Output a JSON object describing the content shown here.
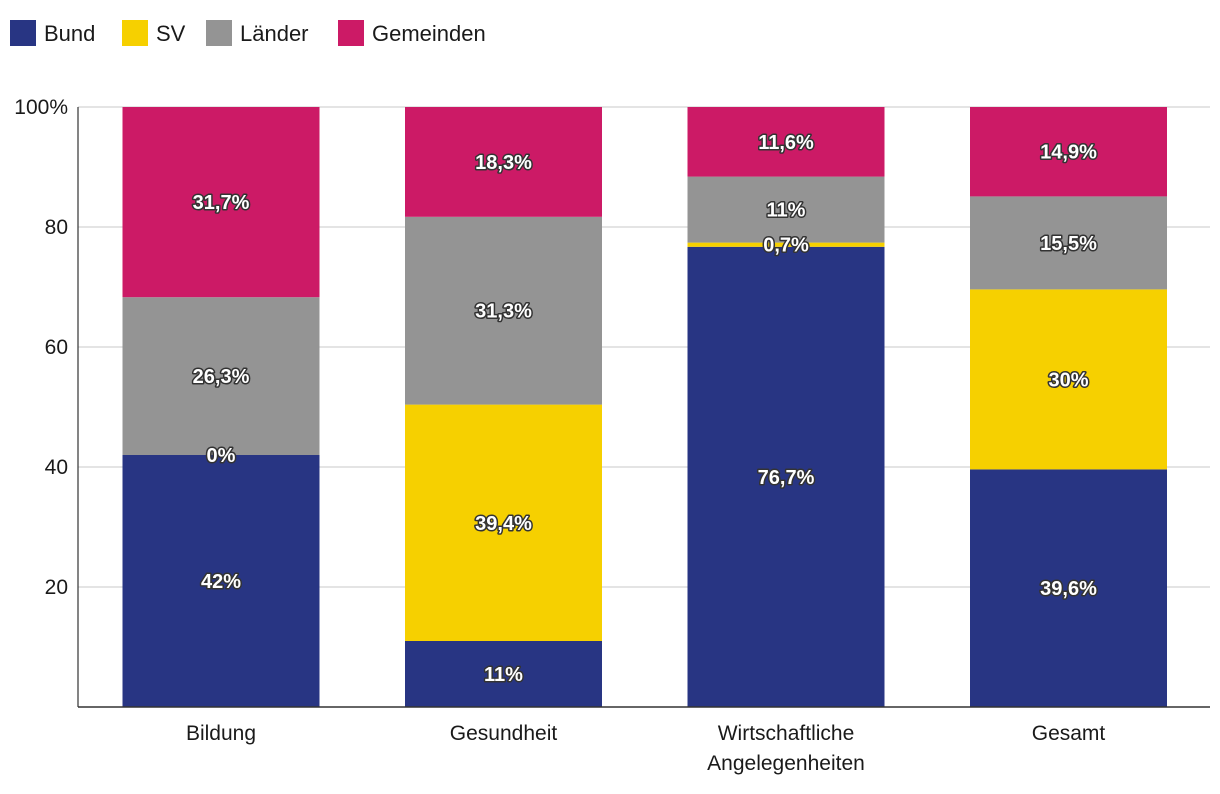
{
  "chart_data": {
    "type": "bar",
    "stacked": true,
    "categories": [
      [
        "Bildung"
      ],
      [
        "Gesundheit"
      ],
      [
        "Wirtschaftliche",
        "Angelegenheiten"
      ],
      [
        "Gesamt"
      ]
    ],
    "series": [
      {
        "name": "Bund",
        "color": "#283583",
        "values": [
          42,
          11,
          76.7,
          39.6
        ],
        "labels": [
          "42%",
          "11%",
          "76,7%",
          "39,6%"
        ]
      },
      {
        "name": "SV",
        "color": "#f6d000",
        "values": [
          0,
          39.4,
          0.7,
          30
        ],
        "labels": [
          "0%",
          "39,4%",
          "0,7%",
          "30%"
        ]
      },
      {
        "name": "Länder",
        "color": "#949494",
        "values": [
          26.3,
          31.3,
          11,
          15.5
        ],
        "labels": [
          "26,3%",
          "31,3%",
          "11%",
          "15,5%"
        ]
      },
      {
        "name": "Gemeinden",
        "color": "#cc1a66",
        "values": [
          31.7,
          18.3,
          11.6,
          14.9
        ],
        "labels": [
          "31,7%",
          "18,3%",
          "11,6%",
          "14,9%"
        ]
      }
    ],
    "yticks": [
      {
        "value": 20,
        "label": "20"
      },
      {
        "value": 40,
        "label": "40"
      },
      {
        "value": 60,
        "label": "60"
      },
      {
        "value": 80,
        "label": "80"
      },
      {
        "value": 100,
        "label": "100%"
      }
    ],
    "ylim": [
      0,
      100
    ],
    "grid": true,
    "legend": "top-left"
  }
}
